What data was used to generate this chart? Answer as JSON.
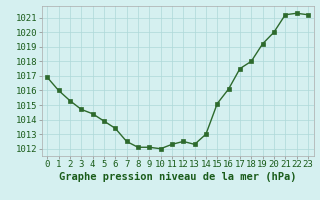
{
  "x": [
    0,
    1,
    2,
    3,
    4,
    5,
    6,
    7,
    8,
    9,
    10,
    11,
    12,
    13,
    14,
    15,
    16,
    17,
    18,
    19,
    20,
    21,
    22,
    23
  ],
  "y": [
    1016.9,
    1016.0,
    1015.3,
    1014.7,
    1014.4,
    1013.9,
    1013.4,
    1012.5,
    1012.1,
    1012.1,
    1012.0,
    1012.3,
    1012.5,
    1012.3,
    1013.0,
    1015.1,
    1016.1,
    1017.5,
    1018.0,
    1019.2,
    1020.0,
    1021.2,
    1021.3,
    1021.2
  ],
  "ylim": [
    1011.5,
    1021.8
  ],
  "yticks": [
    1012,
    1013,
    1014,
    1015,
    1016,
    1017,
    1018,
    1019,
    1020,
    1021
  ],
  "xlim": [
    -0.5,
    23.5
  ],
  "xticks": [
    0,
    1,
    2,
    3,
    4,
    5,
    6,
    7,
    8,
    9,
    10,
    11,
    12,
    13,
    14,
    15,
    16,
    17,
    18,
    19,
    20,
    21,
    22,
    23
  ],
  "line_color": "#2d6a2d",
  "marker": "s",
  "marker_size": 2.5,
  "bg_color": "#d5f0f0",
  "grid_color": "#aed8d8",
  "xlabel": "Graphe pression niveau de la mer (hPa)",
  "xlabel_fontsize": 7.5,
  "tick_fontsize": 6.5,
  "line_width": 1.0
}
